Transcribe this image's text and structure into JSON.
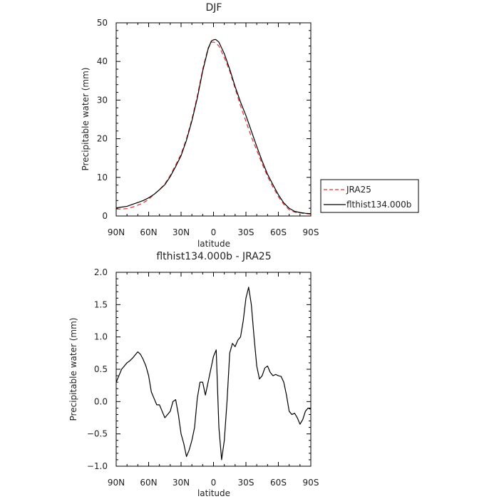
{
  "chart_data": [
    {
      "type": "line",
      "title": "DJF",
      "xlabel": "latitude",
      "ylabel": "Precipitable water (mm)",
      "xlim": [
        90,
        -90
      ],
      "ylim": [
        0,
        50
      ],
      "xticks": [
        {
          "value": 90,
          "label": "90N"
        },
        {
          "value": 60,
          "label": "60N"
        },
        {
          "value": 30,
          "label": "30N"
        },
        {
          "value": 0,
          "label": "0"
        },
        {
          "value": -30,
          "label": "30S"
        },
        {
          "value": -60,
          "label": "60S"
        },
        {
          "value": -90,
          "label": "90S"
        }
      ],
      "yticks": [
        0,
        10,
        20,
        30,
        40,
        50
      ],
      "legend_position": "right",
      "series": [
        {
          "name": "JRA25",
          "color": "#e03030",
          "dash": "dashed",
          "x": [
            90,
            85,
            80,
            75,
            70,
            65,
            60,
            55,
            50,
            45,
            40,
            35,
            30,
            25,
            20,
            15,
            10,
            5,
            2,
            0,
            -2,
            -5,
            -10,
            -15,
            -20,
            -25,
            -30,
            -35,
            -40,
            -45,
            -50,
            -55,
            -60,
            -65,
            -70,
            -75,
            -80,
            -85,
            -90
          ],
          "values": [
            1.8,
            1.8,
            1.9,
            2.3,
            2.8,
            3.4,
            4.3,
            5.6,
            6.8,
            8.3,
            10.5,
            13.2,
            16.0,
            20.0,
            25.0,
            31.0,
            38.0,
            43.5,
            45.0,
            45.0,
            44.8,
            44.0,
            41.0,
            37.5,
            33.0,
            28.5,
            24.5,
            20.5,
            17.0,
            13.5,
            10.2,
            7.5,
            5.0,
            3.0,
            1.6,
            1.0,
            0.8,
            0.6,
            0.5
          ]
        },
        {
          "name": "flthist134.000b",
          "color": "#000000",
          "dash": "solid",
          "x": [
            90,
            85,
            80,
            75,
            70,
            65,
            60,
            55,
            50,
            45,
            40,
            35,
            30,
            25,
            20,
            15,
            10,
            5,
            2,
            0,
            -2,
            -5,
            -10,
            -15,
            -20,
            -25,
            -30,
            -35,
            -40,
            -45,
            -50,
            -55,
            -60,
            -65,
            -70,
            -75,
            -80,
            -85,
            -90
          ],
          "values": [
            2.1,
            2.3,
            2.5,
            3.0,
            3.5,
            4.0,
            4.7,
            5.6,
            6.8,
            8.1,
            10.2,
            12.8,
            15.6,
            19.6,
            24.6,
            30.5,
            37.5,
            43.2,
            45.3,
            45.6,
            45.7,
            45.0,
            42.0,
            38.0,
            33.5,
            29.5,
            26.0,
            22.0,
            18.0,
            14.2,
            10.8,
            8.1,
            5.5,
            3.4,
            2.0,
            1.2,
            0.9,
            0.7,
            0.6
          ]
        }
      ]
    },
    {
      "type": "line",
      "title": "flthist134.000b - JRA25",
      "xlabel": "latitude",
      "ylabel": "Precipitable water (mm)",
      "xlim": [
        90,
        -90
      ],
      "ylim": [
        -1.0,
        2.0
      ],
      "xticks": [
        {
          "value": 90,
          "label": "90N"
        },
        {
          "value": 60,
          "label": "60N"
        },
        {
          "value": 30,
          "label": "30N"
        },
        {
          "value": 0,
          "label": "0"
        },
        {
          "value": -30,
          "label": "30S"
        },
        {
          "value": -60,
          "label": "60S"
        },
        {
          "value": -90,
          "label": "90S"
        }
      ],
      "yticks": [
        {
          "value": 2.0,
          "label": "2.0"
        },
        {
          "value": 1.5,
          "label": "1.5"
        },
        {
          "value": 1.0,
          "label": "1.0"
        },
        {
          "value": 0.5,
          "label": "0.5"
        },
        {
          "value": 0.0,
          "label": "0.0"
        },
        {
          "value": -0.5,
          "label": "−0.5"
        },
        {
          "value": -1.0,
          "label": "−1.0"
        }
      ],
      "series": [
        {
          "color": "#000000",
          "dash": "solid",
          "x": [
            90,
            87.5,
            85,
            82.5,
            80,
            77.5,
            75,
            72.5,
            70,
            67.5,
            65,
            62.5,
            60,
            57.5,
            55,
            52.5,
            50,
            47.5,
            45,
            42.5,
            40,
            37.5,
            35,
            32.5,
            30,
            27.5,
            25,
            22.5,
            20,
            17.5,
            15,
            12.5,
            10,
            7.5,
            5,
            2.5,
            0,
            -2.5,
            -5,
            -7.5,
            -10,
            -12.5,
            -15,
            -17.5,
            -20,
            -22.5,
            -25,
            -27.5,
            -30,
            -32.5,
            -35,
            -37.5,
            -40,
            -42.5,
            -45,
            -47.5,
            -50,
            -52.5,
            -55,
            -57.5,
            -60,
            -62.5,
            -65,
            -67.5,
            -70,
            -72.5,
            -75,
            -77.5,
            -80,
            -82.5,
            -85,
            -87.5,
            -90
          ],
          "values": [
            0.3,
            0.4,
            0.5,
            0.55,
            0.6,
            0.63,
            0.67,
            0.72,
            0.77,
            0.73,
            0.65,
            0.55,
            0.4,
            0.15,
            0.05,
            -0.05,
            -0.05,
            -0.15,
            -0.25,
            -0.2,
            -0.15,
            0.0,
            0.03,
            -0.2,
            -0.5,
            -0.65,
            -0.85,
            -0.75,
            -0.6,
            -0.4,
            0.05,
            0.3,
            0.3,
            0.1,
            0.3,
            0.5,
            0.7,
            0.8,
            -0.4,
            -0.9,
            -0.6,
            0.0,
            0.75,
            0.9,
            0.85,
            0.95,
            1.0,
            1.25,
            1.6,
            1.77,
            1.5,
            1.0,
            0.55,
            0.35,
            0.4,
            0.52,
            0.55,
            0.45,
            0.4,
            0.42,
            0.4,
            0.39,
            0.3,
            0.1,
            -0.15,
            -0.2,
            -0.18,
            -0.25,
            -0.35,
            -0.28,
            -0.15,
            -0.1,
            -0.12
          ]
        }
      ]
    }
  ],
  "colors": {
    "axis": "#000000",
    "text": "#222222",
    "jra25": "#e03030",
    "model": "#000000"
  }
}
